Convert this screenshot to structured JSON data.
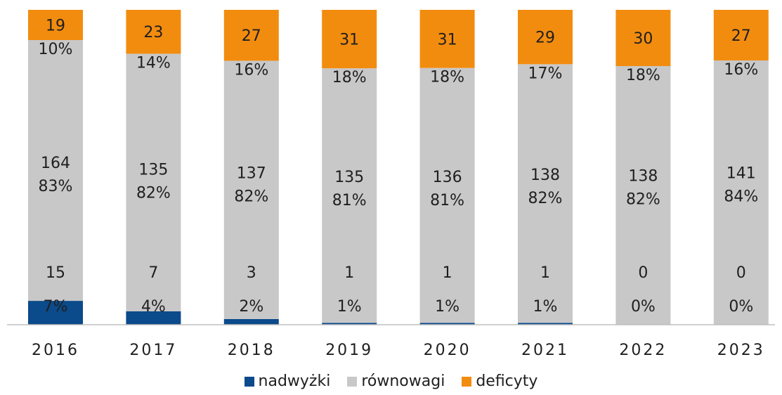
{
  "chart_data": {
    "type": "bar",
    "stacked": "percent",
    "categories": [
      "2016",
      "2017",
      "2018",
      "2019",
      "2020",
      "2021",
      "2022",
      "2023"
    ],
    "series": [
      {
        "name": "nadwyżki",
        "color": "#0b4a8b",
        "values": [
          15,
          7,
          3,
          1,
          1,
          1,
          0,
          0
        ],
        "percent_labels": [
          "7%",
          "4%",
          "2%",
          "1%",
          "1%",
          "1%",
          "0%",
          "0%"
        ]
      },
      {
        "name": "równowagi",
        "color": "#c8c8c8",
        "values": [
          164,
          135,
          137,
          135,
          136,
          138,
          138,
          141
        ],
        "percent_labels": [
          "83%",
          "82%",
          "82%",
          "81%",
          "81%",
          "82%",
          "82%",
          "84%"
        ]
      },
      {
        "name": "deficyty",
        "color": "#f28c0f",
        "values": [
          19,
          23,
          27,
          31,
          31,
          29,
          30,
          27
        ],
        "percent_labels": [
          "10%",
          "14%",
          "16%",
          "18%",
          "18%",
          "17%",
          "18%",
          "16%"
        ]
      }
    ],
    "ylim": [
      0,
      100
    ],
    "grid": false,
    "legend_position": "bottom-center"
  }
}
